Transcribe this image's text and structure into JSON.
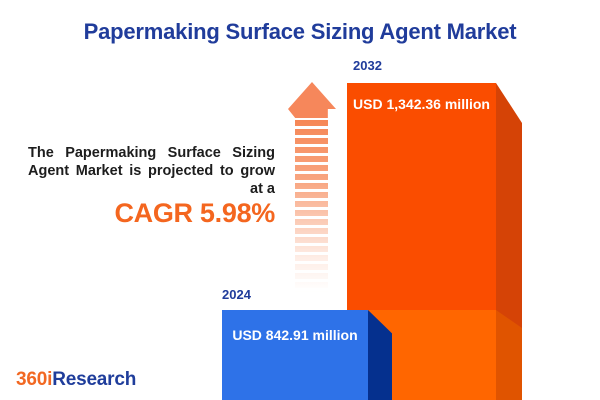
{
  "title": "Papermaking Surface Sizing Agent Market",
  "description": {
    "line1": "The Papermaking Surface Sizing",
    "line2": "Agent Market is projected to grow",
    "line3": "at a",
    "cagr": "CAGR 5.98%"
  },
  "chart_data": {
    "type": "bar",
    "title": "Papermaking Surface Sizing Agent Market",
    "categories": [
      "2024",
      "2032"
    ],
    "values": [
      842.91,
      1342.36
    ],
    "unit": "USD million",
    "value_labels": [
      "USD 842.91 million",
      "USD 1,342.36 million"
    ],
    "cagr_percent": 5.98,
    "ylim": [
      0,
      1400
    ],
    "grid": false,
    "legend": "none"
  },
  "logo": {
    "part1": "360i",
    "part2": "Research"
  },
  "colors": {
    "title_blue": "#203C9B",
    "accent_orange": "#F4661F",
    "text_dark": "#1D1D1D",
    "bar_2024_front": "#2E72E8",
    "bar_2024_side": "#05308E",
    "bar_2032_front": "#FA4D00",
    "bar_2032_side": "#D54306",
    "bar_2024_overlay_front": "#FF6600",
    "bar_2024_overlay_side": "#E05400",
    "arrow_orange": "#F6875B",
    "value_text": "#FFFFFF",
    "logo_orange": "#F26822",
    "logo_blue": "#1F3D9B"
  }
}
